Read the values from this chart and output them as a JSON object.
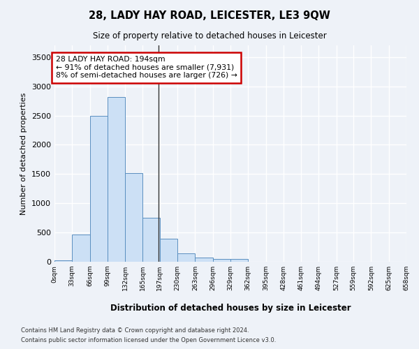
{
  "title": "28, LADY HAY ROAD, LEICESTER, LE3 9QW",
  "subtitle": "Size of property relative to detached houses in Leicester",
  "xlabel": "Distribution of detached houses by size in Leicester",
  "ylabel": "Number of detached properties",
  "footer_line1": "Contains HM Land Registry data © Crown copyright and database right 2024.",
  "footer_line2": "Contains public sector information licensed under the Open Government Licence v3.0.",
  "bar_color": "#cce0f5",
  "bar_edge_color": "#5a8fc0",
  "property_line_color": "#333333",
  "annotation_line1": "28 LADY HAY ROAD: 194sqm",
  "annotation_line2": "← 91% of detached houses are smaller (7,931)",
  "annotation_line3": "8% of semi-detached houses are larger (726) →",
  "annotation_box_color": "#ffffff",
  "annotation_box_edge": "#cc0000",
  "property_value": 194,
  "bin_edges": [
    0,
    33,
    66,
    99,
    132,
    165,
    197,
    230,
    263,
    296,
    329,
    362,
    395,
    428,
    461,
    494,
    527,
    559,
    592,
    625,
    658
  ],
  "bar_heights": [
    25,
    460,
    2500,
    2820,
    1520,
    750,
    390,
    140,
    70,
    50,
    50,
    0,
    0,
    0,
    0,
    0,
    0,
    0,
    0,
    0
  ],
  "ylim": [
    0,
    3700
  ],
  "yticks": [
    0,
    500,
    1000,
    1500,
    2000,
    2500,
    3000,
    3500
  ],
  "background_color": "#eef2f8",
  "grid_color": "#ffffff",
  "tick_labels": [
    "0sqm",
    "33sqm",
    "66sqm",
    "99sqm",
    "132sqm",
    "165sqm",
    "197sqm",
    "230sqm",
    "263sqm",
    "296sqm",
    "329sqm",
    "362sqm",
    "395sqm",
    "428sqm",
    "461sqm",
    "494sqm",
    "527sqm",
    "559sqm",
    "592sqm",
    "625sqm",
    "658sqm"
  ]
}
